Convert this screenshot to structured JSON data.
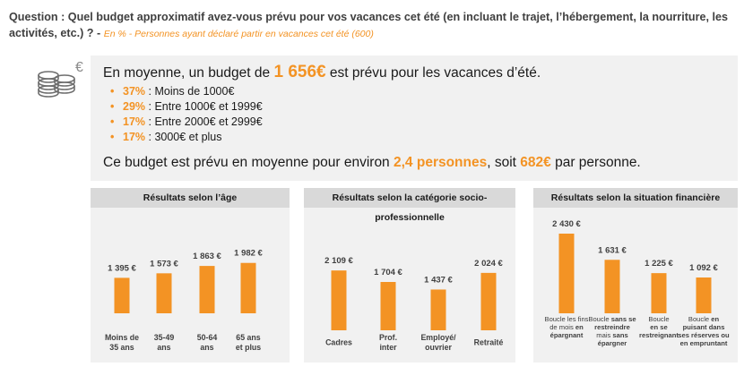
{
  "question": {
    "text": "Question : Quel budget approximatif avez-vous prévu pour vos vacances cet été (en incluant le trajet, l’hébergement, la nourriture, les activités, etc.) ? -",
    "note": "En % - Personnes ayant déclaré partir en vacances cet été (600)"
  },
  "icon": {
    "coins": "coins-euro-icon",
    "euro_symbol": "€"
  },
  "summary": {
    "intro_prefix": "En moyenne, un budget de",
    "budget": "1 656€",
    "intro_suffix": "est prévu pour les vacances d’été.",
    "bullets": [
      {
        "pct": "37%",
        "text": " : Moins de 1000€"
      },
      {
        "pct": "29%",
        "text": " : Entre 1000€ et 1999€"
      },
      {
        "pct": "17%",
        "text": " : Entre 2000€ et 2999€"
      },
      {
        "pct": "17%",
        "text": " : 3000€ et plus"
      }
    ],
    "bullet_symbol": "•",
    "footer_prefix": "Ce budget est prévu en moyenne pour environ",
    "persons": "2,4 personnes",
    "footer_mid": ", soit",
    "per_person": "682€",
    "footer_suffix": "par personne."
  },
  "colors": {
    "accent": "#f39324",
    "panel_bg": "#f1f1f1",
    "header_bg": "#d9d9d9"
  },
  "chart_data": [
    {
      "type": "bar",
      "title": "Résultats selon l’âge",
      "categories": [
        [
          "Moins de",
          "35 ans"
        ],
        [
          "35-49",
          "ans"
        ],
        [
          "50-64",
          "ans"
        ],
        [
          "65 ans",
          "et plus"
        ]
      ],
      "values": [
        1395,
        1573,
        1863,
        1982
      ],
      "value_labels": [
        "1 395 €",
        "1 573 €",
        "1 863 €",
        "1 982 €"
      ]
    },
    {
      "type": "bar",
      "title": "Résultats selon la catégorie socio-professionnelle",
      "categories": [
        [
          "Cadres"
        ],
        [
          "Prof.",
          "inter"
        ],
        [
          "Employé/",
          "ouvrier"
        ],
        [
          "Retraité"
        ]
      ],
      "values": [
        2109,
        1704,
        1437,
        2024
      ],
      "value_labels": [
        "2 109 €",
        "1 704 €",
        "1 437 €",
        "2 024 €"
      ]
    },
    {
      "type": "bar",
      "title": "Résultats selon la situation financière",
      "categories": [
        [
          [
            {
              "t": "Boucle les fins",
              "b": false
            }
          ],
          [
            {
              "t": "de mois ",
              "b": false
            },
            {
              "t": "en",
              "b": true
            }
          ],
          [
            {
              "t": "épargnant",
              "b": true
            }
          ]
        ],
        [
          [
            {
              "t": "Boucle ",
              "b": false
            },
            {
              "t": "sans se",
              "b": true
            }
          ],
          [
            {
              "t": "restreindre",
              "b": true
            }
          ],
          [
            {
              "t": "mais ",
              "b": false
            },
            {
              "t": "sans",
              "b": true
            }
          ],
          [
            {
              "t": "épargner",
              "b": true
            }
          ]
        ],
        [
          [
            {
              "t": "Boucle",
              "b": false
            }
          ],
          [
            {
              "t": "en se",
              "b": true
            }
          ],
          [
            {
              "t": "restreignant",
              "b": true
            }
          ]
        ],
        [
          [
            {
              "t": "Boucle ",
              "b": false
            },
            {
              "t": "en",
              "b": true
            }
          ],
          [
            {
              "t": "puisant dans",
              "b": true
            }
          ],
          [
            {
              "t": "ses réserves ou",
              "b": true
            }
          ],
          [
            {
              "t": "en empruntant",
              "b": true
            }
          ]
        ]
      ],
      "values": [
        2430,
        1631,
        1225,
        1092
      ],
      "value_labels": [
        "2 430 €",
        "1 631 €",
        "1 225 €",
        "1 092 €"
      ]
    }
  ]
}
